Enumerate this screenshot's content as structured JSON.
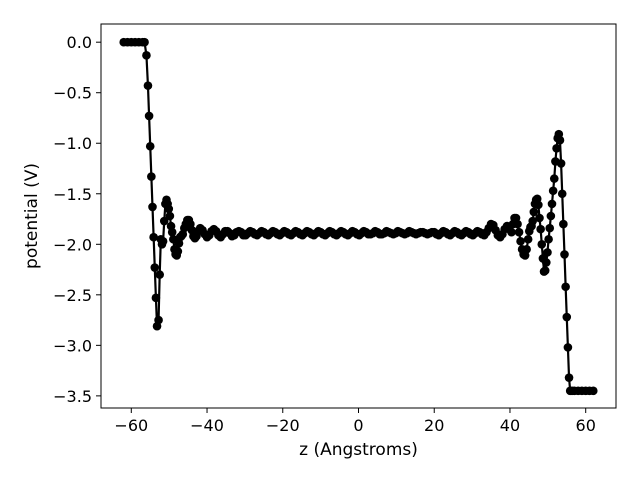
{
  "chart_data": {
    "type": "line",
    "xlabel": "z (Angstroms)",
    "ylabel": "potential (V)",
    "xlim": [
      -68,
      68
    ],
    "ylim": [
      -3.62,
      0.18
    ],
    "xticks": [
      -60,
      -40,
      -20,
      0,
      20,
      40,
      60
    ],
    "yticks": [
      0.0,
      -0.5,
      -1.0,
      -1.5,
      -2.0,
      -2.5,
      -3.0,
      -3.5
    ],
    "xtick_labels": [
      "−60",
      "−40",
      "−20",
      "0",
      "20",
      "40",
      "60"
    ],
    "ytick_labels": [
      "0.0",
      "−0.5",
      "−1.0",
      "−1.5",
      "−2.0",
      "−2.5",
      "−3.0",
      "−3.5"
    ],
    "grid": false,
    "legend": "none",
    "line_color": "#000000",
    "marker": "circle",
    "series": [
      {
        "points": [
          [
            -62.0,
            0.0
          ],
          [
            -61.0,
            0.0
          ],
          [
            -60.0,
            0.0
          ],
          [
            -59.0,
            0.0
          ],
          [
            -58.0,
            0.0
          ],
          [
            -57.0,
            0.0
          ],
          [
            -56.5,
            0.0
          ],
          [
            -56.0,
            -0.13
          ],
          [
            -55.6,
            -0.43
          ],
          [
            -55.3,
            -0.73
          ],
          [
            -55.0,
            -1.03
          ],
          [
            -54.7,
            -1.33
          ],
          [
            -54.4,
            -1.63
          ],
          [
            -54.1,
            -1.93
          ],
          [
            -53.8,
            -2.23
          ],
          [
            -53.5,
            -2.53
          ],
          [
            -53.2,
            -2.81
          ],
          [
            -52.8,
            -2.75
          ],
          [
            -52.5,
            -2.3
          ],
          [
            -52.2,
            -1.95
          ],
          [
            -51.9,
            -2.0
          ],
          [
            -51.6,
            -1.97
          ],
          [
            -51.3,
            -1.77
          ],
          [
            -51.0,
            -1.6
          ],
          [
            -50.7,
            -1.56
          ],
          [
            -50.4,
            -1.6
          ],
          [
            -50.1,
            -1.65
          ],
          [
            -49.8,
            -1.72
          ],
          [
            -49.5,
            -1.82
          ],
          [
            -49.2,
            -1.88
          ],
          [
            -48.9,
            -1.95
          ],
          [
            -48.6,
            -2.05
          ],
          [
            -48.3,
            -2.1
          ],
          [
            -48.0,
            -2.11
          ],
          [
            -47.7,
            -2.07
          ],
          [
            -47.4,
            -1.99
          ],
          [
            -47.1,
            -1.93
          ],
          [
            -46.8,
            -1.92
          ],
          [
            -46.4,
            -1.9
          ],
          [
            -46.0,
            -1.84
          ],
          [
            -45.6,
            -1.8
          ],
          [
            -45.2,
            -1.76
          ],
          [
            -44.8,
            -1.76
          ],
          [
            -44.4,
            -1.8
          ],
          [
            -44.0,
            -1.86
          ],
          [
            -43.6,
            -1.92
          ],
          [
            -43.2,
            -1.94
          ],
          [
            -42.8,
            -1.92
          ],
          [
            -42.4,
            -1.87
          ],
          [
            -41.8,
            -1.84
          ],
          [
            -41.2,
            -1.86
          ],
          [
            -40.6,
            -1.9
          ],
          [
            -40.0,
            -1.93
          ],
          [
            -39.4,
            -1.91
          ],
          [
            -38.8,
            -1.87
          ],
          [
            -38.2,
            -1.85
          ],
          [
            -37.6,
            -1.87
          ],
          [
            -37.0,
            -1.91
          ],
          [
            -36.4,
            -1.93
          ],
          [
            -35.8,
            -1.9
          ],
          [
            -35.2,
            -1.87
          ],
          [
            -34.6,
            -1.87
          ],
          [
            -34.0,
            -1.89
          ],
          [
            -33.4,
            -1.92
          ],
          [
            -32.8,
            -1.91
          ],
          [
            -32.2,
            -1.88
          ],
          [
            -31.6,
            -1.87
          ],
          [
            -31.0,
            -1.88
          ],
          [
            -30.4,
            -1.91
          ],
          [
            -29.8,
            -1.91
          ],
          [
            -29.2,
            -1.89
          ],
          [
            -28.6,
            -1.87
          ],
          [
            -28.0,
            -1.88
          ],
          [
            -27.4,
            -1.9
          ],
          [
            -26.8,
            -1.91
          ],
          [
            -26.2,
            -1.89
          ],
          [
            -25.6,
            -1.87
          ],
          [
            -25.0,
            -1.88
          ],
          [
            -24.4,
            -1.9
          ],
          [
            -23.8,
            -1.91
          ],
          [
            -23.2,
            -1.89
          ],
          [
            -22.6,
            -1.87
          ],
          [
            -22.0,
            -1.88
          ],
          [
            -21.4,
            -1.9
          ],
          [
            -20.8,
            -1.91
          ],
          [
            -20.2,
            -1.89
          ],
          [
            -19.6,
            -1.87
          ],
          [
            -19.0,
            -1.88
          ],
          [
            -18.4,
            -1.9
          ],
          [
            -17.8,
            -1.91
          ],
          [
            -17.2,
            -1.89
          ],
          [
            -16.6,
            -1.87
          ],
          [
            -16.0,
            -1.88
          ],
          [
            -15.4,
            -1.9
          ],
          [
            -14.8,
            -1.91
          ],
          [
            -14.2,
            -1.89
          ],
          [
            -13.6,
            -1.87
          ],
          [
            -13.0,
            -1.88
          ],
          [
            -12.4,
            -1.9
          ],
          [
            -11.8,
            -1.91
          ],
          [
            -11.2,
            -1.89
          ],
          [
            -10.6,
            -1.87
          ],
          [
            -10.0,
            -1.88
          ],
          [
            -9.4,
            -1.9
          ],
          [
            -8.8,
            -1.91
          ],
          [
            -8.2,
            -1.89
          ],
          [
            -7.6,
            -1.87
          ],
          [
            -7.0,
            -1.88
          ],
          [
            -6.4,
            -1.9
          ],
          [
            -5.8,
            -1.91
          ],
          [
            -5.2,
            -1.89
          ],
          [
            -4.6,
            -1.87
          ],
          [
            -4.0,
            -1.88
          ],
          [
            -3.4,
            -1.9
          ],
          [
            -2.8,
            -1.91
          ],
          [
            -2.2,
            -1.89
          ],
          [
            -1.6,
            -1.87
          ],
          [
            -1.0,
            -1.88
          ],
          [
            -0.4,
            -1.9
          ],
          [
            0.2,
            -1.91
          ],
          [
            0.8,
            -1.89
          ],
          [
            1.4,
            -1.87
          ],
          [
            2.0,
            -1.88
          ],
          [
            2.6,
            -1.9
          ],
          [
            3.2,
            -1.9
          ],
          [
            3.8,
            -1.89
          ],
          [
            4.4,
            -1.87
          ],
          [
            5.0,
            -1.88
          ],
          [
            5.6,
            -1.9
          ],
          [
            6.2,
            -1.9
          ],
          [
            6.8,
            -1.89
          ],
          [
            7.4,
            -1.87
          ],
          [
            8.0,
            -1.88
          ],
          [
            8.6,
            -1.89
          ],
          [
            9.2,
            -1.9
          ],
          [
            9.8,
            -1.89
          ],
          [
            10.4,
            -1.87
          ],
          [
            11.0,
            -1.88
          ],
          [
            11.6,
            -1.89
          ],
          [
            12.2,
            -1.9
          ],
          [
            12.8,
            -1.89
          ],
          [
            13.4,
            -1.87
          ],
          [
            14.0,
            -1.88
          ],
          [
            14.6,
            -1.89
          ],
          [
            15.2,
            -1.9
          ],
          [
            15.8,
            -1.89
          ],
          [
            16.4,
            -1.88
          ],
          [
            17.0,
            -1.88
          ],
          [
            17.6,
            -1.89
          ],
          [
            18.2,
            -1.9
          ],
          [
            18.8,
            -1.89
          ],
          [
            19.4,
            -1.88
          ],
          [
            20.0,
            -1.88
          ],
          [
            20.6,
            -1.9
          ],
          [
            21.2,
            -1.91
          ],
          [
            21.8,
            -1.89
          ],
          [
            22.4,
            -1.87
          ],
          [
            23.0,
            -1.88
          ],
          [
            23.6,
            -1.9
          ],
          [
            24.2,
            -1.91
          ],
          [
            24.8,
            -1.89
          ],
          [
            25.4,
            -1.87
          ],
          [
            26.0,
            -1.88
          ],
          [
            26.6,
            -1.9
          ],
          [
            27.2,
            -1.91
          ],
          [
            27.8,
            -1.89
          ],
          [
            28.4,
            -1.87
          ],
          [
            29.0,
            -1.88
          ],
          [
            29.6,
            -1.9
          ],
          [
            30.2,
            -1.91
          ],
          [
            30.8,
            -1.89
          ],
          [
            31.4,
            -1.87
          ],
          [
            32.0,
            -1.88
          ],
          [
            32.6,
            -1.9
          ],
          [
            33.2,
            -1.91
          ],
          [
            33.8,
            -1.88
          ],
          [
            34.4,
            -1.84
          ],
          [
            35.0,
            -1.8
          ],
          [
            35.6,
            -1.81
          ],
          [
            36.2,
            -1.86
          ],
          [
            36.8,
            -1.91
          ],
          [
            37.4,
            -1.93
          ],
          [
            38.0,
            -1.9
          ],
          [
            38.6,
            -1.85
          ],
          [
            39.2,
            -1.82
          ],
          [
            39.8,
            -1.85
          ],
          [
            40.4,
            -1.88
          ],
          [
            40.8,
            -1.8
          ],
          [
            41.2,
            -1.74
          ],
          [
            41.6,
            -1.74
          ],
          [
            42.0,
            -1.8
          ],
          [
            42.4,
            -1.88
          ],
          [
            42.8,
            -1.97
          ],
          [
            43.2,
            -2.05
          ],
          [
            43.6,
            -2.1
          ],
          [
            44.0,
            -2.11
          ],
          [
            44.4,
            -2.05
          ],
          [
            44.8,
            -1.95
          ],
          [
            45.1,
            -1.87
          ],
          [
            45.4,
            -1.83
          ],
          [
            45.7,
            -1.82
          ],
          [
            46.0,
            -1.77
          ],
          [
            46.3,
            -1.68
          ],
          [
            46.6,
            -1.6
          ],
          [
            46.9,
            -1.56
          ],
          [
            47.2,
            -1.55
          ],
          [
            47.5,
            -1.61
          ],
          [
            47.8,
            -1.74
          ],
          [
            48.1,
            -1.85
          ],
          [
            48.4,
            -2.0
          ],
          [
            48.7,
            -2.14
          ],
          [
            49.0,
            -2.27
          ],
          [
            49.3,
            -2.26
          ],
          [
            49.6,
            -2.18
          ],
          [
            49.9,
            -2.08
          ],
          [
            50.2,
            -1.95
          ],
          [
            50.5,
            -1.84
          ],
          [
            50.8,
            -1.72
          ],
          [
            51.1,
            -1.6
          ],
          [
            51.4,
            -1.47
          ],
          [
            51.7,
            -1.35
          ],
          [
            52.0,
            -1.18
          ],
          [
            52.3,
            -1.05
          ],
          [
            52.6,
            -0.95
          ],
          [
            52.9,
            -0.91
          ],
          [
            53.2,
            -0.97
          ],
          [
            53.5,
            -1.2
          ],
          [
            53.8,
            -1.5
          ],
          [
            54.1,
            -1.8
          ],
          [
            54.4,
            -2.1
          ],
          [
            54.7,
            -2.42
          ],
          [
            55.0,
            -2.72
          ],
          [
            55.3,
            -3.02
          ],
          [
            55.6,
            -3.32
          ],
          [
            55.9,
            -3.45
          ],
          [
            56.4,
            -3.45
          ],
          [
            57.0,
            -3.45
          ],
          [
            58.0,
            -3.45
          ],
          [
            59.0,
            -3.45
          ],
          [
            60.0,
            -3.45
          ],
          [
            61.0,
            -3.45
          ],
          [
            62.0,
            -3.45
          ]
        ]
      }
    ]
  }
}
